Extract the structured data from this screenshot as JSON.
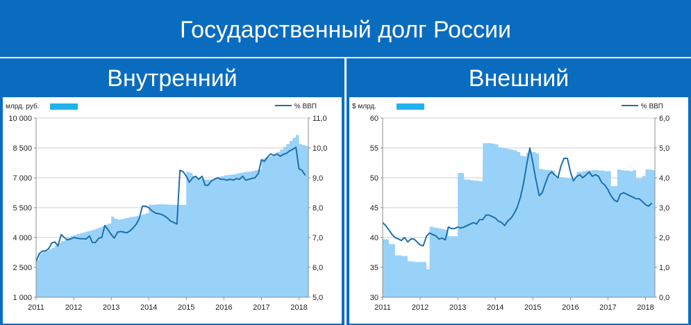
{
  "page_title": "Государственный долг России",
  "colors": {
    "background": "#0a6cbf",
    "area": "#99d2f8",
    "line": "#1d6fad",
    "legend_box": "#1fb3ec",
    "grid": "#cfcfcf"
  },
  "chart_data": [
    {
      "type": "bar+line",
      "panel_title": "Внутренний",
      "left_unit": "млрд. руб.",
      "right_unit": "% ВВП",
      "x_ticks": [
        "2011",
        "2012",
        "2013",
        "2014",
        "2015",
        "2016",
        "2017",
        "2018"
      ],
      "y_left_ticks": [
        "1 000",
        "2 500",
        "4 000",
        "5 500",
        "7 000",
        "8 500",
        "10 000"
      ],
      "y_right_ticks": [
        "5,0",
        "6,0",
        "7,0",
        "8,0",
        "9,0",
        "10,0",
        "11,0"
      ],
      "y_left_range": [
        1000,
        10000
      ],
      "y_right_range": [
        5.0,
        11.0
      ],
      "x_range": [
        2011.0,
        2018.25
      ],
      "series": [
        {
          "kind": "area",
          "axis": "left",
          "x": [
            2011.0,
            2011.08,
            2011.17,
            2011.25,
            2011.33,
            2011.42,
            2011.5,
            2011.58,
            2011.67,
            2011.75,
            2011.83,
            2011.92,
            2012.0,
            2012.08,
            2012.17,
            2012.25,
            2012.33,
            2012.42,
            2012.5,
            2012.58,
            2012.67,
            2012.75,
            2012.83,
            2012.92,
            2013.0,
            2013.08,
            2013.17,
            2013.25,
            2013.33,
            2013.42,
            2013.5,
            2013.58,
            2013.67,
            2013.75,
            2013.83,
            2013.92,
            2014.0,
            2014.08,
            2014.17,
            2014.25,
            2014.33,
            2014.42,
            2014.5,
            2014.58,
            2014.67,
            2014.75,
            2014.83,
            2014.92,
            2015.0,
            2015.08,
            2015.17,
            2015.25,
            2015.33,
            2015.42,
            2015.5,
            2015.58,
            2015.67,
            2015.75,
            2015.83,
            2015.92,
            2016.0,
            2016.08,
            2016.17,
            2016.25,
            2016.33,
            2016.42,
            2016.5,
            2016.58,
            2016.67,
            2016.75,
            2016.83,
            2016.92,
            2017.0,
            2017.08,
            2017.17,
            2017.25,
            2017.33,
            2017.42,
            2017.5,
            2017.58,
            2017.67,
            2017.75,
            2017.83,
            2017.92,
            2018.0,
            2018.08,
            2018.17
          ],
          "values": [
            2880,
            3180,
            3300,
            3330,
            3400,
            3480,
            3600,
            3720,
            3820,
            3880,
            4000,
            4080,
            4120,
            4180,
            4220,
            4260,
            4300,
            4340,
            4390,
            4440,
            4500,
            4570,
            4640,
            4700,
            5050,
            4950,
            4900,
            4920,
            4960,
            5000,
            5030,
            5050,
            5080,
            5120,
            5170,
            5220,
            5650,
            5650,
            5660,
            5670,
            5670,
            5660,
            5650,
            5650,
            5640,
            5640,
            5640,
            5640,
            7300,
            7250,
            7100,
            7000,
            6960,
            6940,
            6900,
            6900,
            6900,
            7000,
            7050,
            7080,
            7120,
            7140,
            7160,
            7180,
            7220,
            7250,
            7280,
            7300,
            7320,
            7340,
            7380,
            7420,
            7960,
            8000,
            8050,
            8120,
            8200,
            8300,
            8420,
            8550,
            8700,
            8850,
            9000,
            9150,
            8700,
            8650,
            8600
          ]
        },
        {
          "kind": "line",
          "axis": "right",
          "x": [
            2011.0,
            2011.08,
            2011.17,
            2011.25,
            2011.33,
            2011.42,
            2011.5,
            2011.58,
            2011.67,
            2011.75,
            2011.83,
            2011.92,
            2012.0,
            2012.08,
            2012.17,
            2012.25,
            2012.33,
            2012.42,
            2012.5,
            2012.58,
            2012.67,
            2012.75,
            2012.83,
            2012.92,
            2013.0,
            2013.08,
            2013.17,
            2013.25,
            2013.33,
            2013.42,
            2013.5,
            2013.58,
            2013.67,
            2013.75,
            2013.83,
            2013.92,
            2014.0,
            2014.08,
            2014.17,
            2014.25,
            2014.33,
            2014.42,
            2014.5,
            2014.58,
            2014.67,
            2014.75,
            2014.83,
            2014.92,
            2015.0,
            2015.08,
            2015.17,
            2015.25,
            2015.33,
            2015.42,
            2015.5,
            2015.58,
            2015.67,
            2015.75,
            2015.83,
            2015.92,
            2016.0,
            2016.08,
            2016.17,
            2016.25,
            2016.33,
            2016.42,
            2016.5,
            2016.58,
            2016.67,
            2016.75,
            2016.83,
            2016.92,
            2017.0,
            2017.08,
            2017.17,
            2017.25,
            2017.33,
            2017.42,
            2017.5,
            2017.58,
            2017.67,
            2017.75,
            2017.83,
            2017.92,
            2018.0,
            2018.08,
            2018.17
          ],
          "values": [
            6.2,
            6.45,
            6.55,
            6.55,
            6.62,
            6.82,
            6.85,
            6.72,
            7.1,
            7.0,
            6.92,
            6.95,
            7.0,
            6.98,
            6.96,
            6.96,
            6.95,
            7.05,
            6.83,
            6.83,
            6.98,
            7.0,
            7.4,
            7.25,
            7.1,
            6.98,
            7.18,
            7.2,
            7.18,
            7.16,
            7.22,
            7.32,
            7.45,
            7.65,
            8.05,
            8.05,
            8.0,
            7.9,
            7.82,
            7.8,
            7.78,
            7.72,
            7.65,
            7.55,
            7.5,
            7.45,
            9.25,
            9.2,
            9.05,
            8.85,
            9.0,
            9.05,
            8.95,
            9.05,
            8.75,
            8.75,
            8.9,
            8.95,
            9.0,
            8.95,
            8.95,
            8.92,
            8.95,
            8.92,
            8.97,
            8.95,
            9.05,
            8.92,
            8.95,
            8.98,
            9.0,
            9.15,
            9.6,
            9.55,
            9.7,
            9.8,
            9.75,
            9.8,
            9.72,
            9.78,
            9.82,
            9.9,
            9.95,
            10.02,
            9.3,
            9.25,
            9.08
          ]
        }
      ]
    },
    {
      "type": "bar+line",
      "panel_title": "Внешний",
      "left_unit": "$ млрд.",
      "right_unit": "% ВВП",
      "x_ticks": [
        "2011",
        "2012",
        "2013",
        "2014",
        "2015",
        "2016",
        "2017",
        "2018"
      ],
      "y_left_ticks": [
        "30",
        "35",
        "40",
        "45",
        "50",
        "55",
        "60"
      ],
      "y_right_ticks": [
        "0,0",
        "1,0",
        "2,0",
        "3,0",
        "4,0",
        "5,0",
        "6,0"
      ],
      "y_left_range": [
        30,
        60
      ],
      "y_right_range": [
        0.0,
        6.0
      ],
      "x_range": [
        2011.0,
        2018.25
      ],
      "series": [
        {
          "kind": "area",
          "axis": "left",
          "x": [
            2011.0,
            2011.08,
            2011.17,
            2011.25,
            2011.33,
            2011.42,
            2011.5,
            2011.58,
            2011.67,
            2011.75,
            2011.83,
            2011.92,
            2012.0,
            2012.08,
            2012.17,
            2012.25,
            2012.33,
            2012.42,
            2012.5,
            2012.58,
            2012.67,
            2012.75,
            2012.83,
            2012.92,
            2013.0,
            2013.08,
            2013.17,
            2013.25,
            2013.33,
            2013.42,
            2013.5,
            2013.58,
            2013.67,
            2013.75,
            2013.83,
            2013.92,
            2014.0,
            2014.08,
            2014.17,
            2014.25,
            2014.33,
            2014.42,
            2014.5,
            2014.58,
            2014.67,
            2014.75,
            2014.83,
            2014.92,
            2015.0,
            2015.08,
            2015.17,
            2015.25,
            2015.33,
            2015.42,
            2015.5,
            2015.58,
            2015.67,
            2015.75,
            2015.83,
            2015.92,
            2016.0,
            2016.08,
            2016.17,
            2016.25,
            2016.33,
            2016.42,
            2016.5,
            2016.58,
            2016.67,
            2016.75,
            2016.83,
            2016.92,
            2017.0,
            2017.08,
            2017.17,
            2017.25,
            2017.33,
            2017.42,
            2017.5,
            2017.58,
            2017.67,
            2017.75,
            2017.83,
            2017.92,
            2018.0,
            2018.08,
            2018.17
          ],
          "values": [
            39.7,
            39.7,
            38.9,
            38.9,
            37.0,
            37.0,
            36.9,
            36.9,
            36.0,
            36.0,
            35.9,
            35.9,
            35.9,
            35.9,
            34.7,
            41.8,
            41.7,
            41.6,
            41.5,
            41.4,
            41.3,
            40.2,
            40.2,
            40.2,
            50.8,
            50.8,
            49.7,
            49.7,
            49.6,
            49.5,
            49.5,
            49.4,
            55.8,
            55.8,
            55.8,
            55.7,
            55.6,
            55.1,
            55.0,
            54.9,
            54.8,
            54.7,
            54.6,
            54.3,
            53.7,
            53.6,
            54.2,
            54.3,
            54.3,
            54.1,
            51.5,
            51.4,
            51.3,
            51.3,
            51.2,
            50.1,
            50.1,
            50.1,
            50.0,
            49.9,
            49.9,
            49.8,
            51.0,
            51.0,
            51.1,
            51.2,
            51.2,
            51.3,
            51.3,
            51.2,
            51.2,
            51.1,
            51.1,
            48.6,
            48.6,
            51.4,
            51.3,
            51.2,
            51.2,
            51.1,
            51.3,
            49.9,
            49.9,
            50.3,
            51.4,
            51.4,
            51.3
          ]
        },
        {
          "kind": "line",
          "axis": "right",
          "x": [
            2011.0,
            2011.08,
            2011.17,
            2011.25,
            2011.33,
            2011.42,
            2011.5,
            2011.58,
            2011.67,
            2011.75,
            2011.83,
            2011.92,
            2012.0,
            2012.08,
            2012.17,
            2012.25,
            2012.33,
            2012.42,
            2012.5,
            2012.58,
            2012.67,
            2012.75,
            2012.83,
            2012.92,
            2013.0,
            2013.08,
            2013.17,
            2013.25,
            2013.33,
            2013.42,
            2013.5,
            2013.58,
            2013.67,
            2013.75,
            2013.83,
            2013.92,
            2014.0,
            2014.08,
            2014.17,
            2014.25,
            2014.33,
            2014.42,
            2014.5,
            2014.58,
            2014.67,
            2014.75,
            2014.83,
            2014.92,
            2015.0,
            2015.08,
            2015.17,
            2015.25,
            2015.33,
            2015.42,
            2015.5,
            2015.58,
            2015.67,
            2015.75,
            2015.83,
            2015.92,
            2016.0,
            2016.08,
            2016.17,
            2016.25,
            2016.33,
            2016.42,
            2016.5,
            2016.58,
            2016.67,
            2016.75,
            2016.83,
            2016.92,
            2017.0,
            2017.08,
            2017.17,
            2017.25,
            2017.33,
            2017.42,
            2017.5,
            2017.58,
            2017.67,
            2017.75,
            2017.83,
            2017.92,
            2018.0,
            2018.08,
            2018.17
          ],
          "values": [
            2.5,
            2.4,
            2.25,
            2.1,
            2.0,
            1.95,
            1.9,
            2.0,
            1.85,
            1.95,
            1.95,
            1.85,
            1.75,
            1.72,
            2.05,
            2.15,
            2.1,
            2.05,
            1.95,
            1.98,
            1.92,
            2.35,
            2.3,
            2.3,
            2.35,
            2.32,
            2.35,
            2.4,
            2.45,
            2.5,
            2.45,
            2.6,
            2.6,
            2.75,
            2.75,
            2.7,
            2.65,
            2.55,
            2.5,
            2.4,
            2.55,
            2.65,
            2.8,
            3.0,
            3.35,
            3.8,
            4.4,
            5.0,
            4.5,
            3.95,
            3.4,
            3.5,
            3.8,
            4.1,
            4.2,
            4.1,
            4.0,
            4.4,
            4.65,
            4.65,
            4.2,
            3.9,
            4.05,
            4.1,
            4.0,
            4.1,
            4.2,
            4.05,
            4.1,
            4.05,
            3.85,
            3.75,
            3.6,
            3.4,
            3.25,
            3.2,
            3.45,
            3.5,
            3.45,
            3.4,
            3.35,
            3.3,
            3.3,
            3.2,
            3.1,
            3.05,
            3.15
          ]
        }
      ]
    }
  ]
}
